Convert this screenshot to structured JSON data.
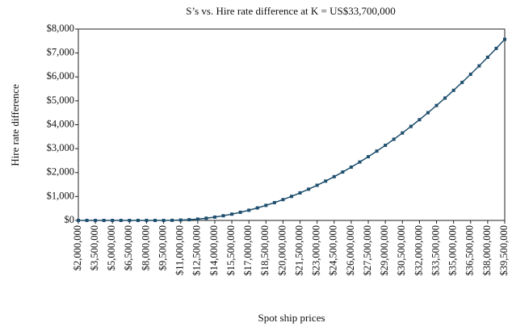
{
  "chart_data": {
    "type": "line",
    "title": "S’s vs. Hire rate difference at K = US$33,700,000",
    "x_label": "Spot ship prices",
    "y_label": "Hire rate difference",
    "x": [
      2000000,
      2750000,
      3500000,
      4250000,
      5000000,
      5750000,
      6500000,
      7250000,
      8000000,
      8750000,
      9500000,
      10250000,
      11000000,
      11750000,
      12500000,
      13250000,
      14000000,
      14750000,
      15500000,
      16250000,
      17000000,
      17750000,
      18500000,
      19250000,
      20000000,
      20750000,
      21500000,
      22250000,
      23000000,
      23750000,
      24500000,
      25250000,
      26000000,
      26750000,
      27500000,
      28250000,
      29000000,
      29750000,
      30500000,
      31250000,
      32000000,
      32750000,
      33500000,
      34250000,
      35000000,
      35750000,
      36500000,
      37250000,
      38000000,
      38750000,
      39500000
    ],
    "series": [
      {
        "name": "Hire rate difference",
        "color": "#1f4f6e",
        "values": [
          0,
          0,
          0,
          0,
          0,
          0,
          0,
          0,
          0,
          0,
          0,
          5,
          15,
          30,
          55,
          92,
          139,
          196,
          263,
          340,
          426,
          523,
          629,
          744,
          870,
          1005,
          1151,
          1306,
          1470,
          1645,
          1829,
          2023,
          2227,
          2441,
          2664,
          2898,
          3141,
          3394,
          3656,
          3929,
          4211,
          4503,
          4805,
          5116,
          5438,
          5769,
          6110,
          6460,
          6821,
          7191,
          7571
        ]
      }
    ],
    "xlim": [
      2000000,
      39500000
    ],
    "xticks": [
      {
        "value": 2000000,
        "label": "$2,000,000"
      },
      {
        "value": 3500000,
        "label": "$3,500,000"
      },
      {
        "value": 5000000,
        "label": "$5,000,000"
      },
      {
        "value": 6500000,
        "label": "$6,500,000"
      },
      {
        "value": 8000000,
        "label": "$8,000,000"
      },
      {
        "value": 9500000,
        "label": "$9,500,000"
      },
      {
        "value": 11000000,
        "label": "$11,000,000"
      },
      {
        "value": 12500000,
        "label": "$12,500,000"
      },
      {
        "value": 14000000,
        "label": "$14,000,000"
      },
      {
        "value": 15500000,
        "label": "$15,500,000"
      },
      {
        "value": 17000000,
        "label": "$17,000,000"
      },
      {
        "value": 18500000,
        "label": "$18,500,000"
      },
      {
        "value": 20000000,
        "label": "$20,000,000"
      },
      {
        "value": 21500000,
        "label": "$21,500,000"
      },
      {
        "value": 23000000,
        "label": "$23,000,000"
      },
      {
        "value": 24500000,
        "label": "$24,500,000"
      },
      {
        "value": 26000000,
        "label": "$26,000,000"
      },
      {
        "value": 27500000,
        "label": "$27,500,000"
      },
      {
        "value": 29000000,
        "label": "$29,000,000"
      },
      {
        "value": 30500000,
        "label": "$30,500,000"
      },
      {
        "value": 32000000,
        "label": "$32,000,000"
      },
      {
        "value": 33500000,
        "label": "$33,500,000"
      },
      {
        "value": 35000000,
        "label": "$35,000,000"
      },
      {
        "value": 36500000,
        "label": "$36,500,000"
      },
      {
        "value": 38000000,
        "label": "$38,000,000"
      },
      {
        "value": 39500000,
        "label": "$39,500,000"
      }
    ],
    "ylim": [
      0,
      8000
    ],
    "yticks": [
      {
        "value": 0,
        "label": "$0"
      },
      {
        "value": 1000,
        "label": "$1,000"
      },
      {
        "value": 2000,
        "label": "$2,000"
      },
      {
        "value": 3000,
        "label": "$3,000"
      },
      {
        "value": 4000,
        "label": "$4,000"
      },
      {
        "value": 5000,
        "label": "$5,000"
      },
      {
        "value": 6000,
        "label": "$6,000"
      },
      {
        "value": 7000,
        "label": "$7,000"
      },
      {
        "value": 8000,
        "label": "$8,000"
      }
    ],
    "grid": false
  }
}
